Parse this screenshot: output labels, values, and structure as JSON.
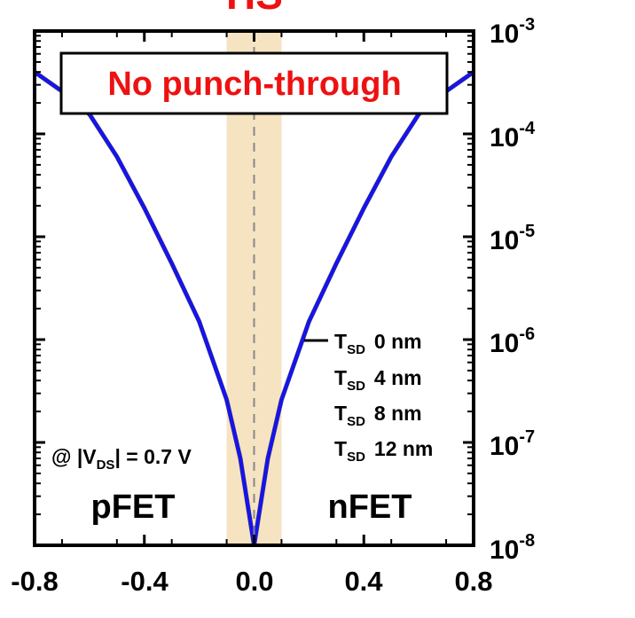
{
  "chart_data": {
    "type": "line",
    "title": "HS",
    "xlabel": "",
    "ylabel": "",
    "xlim": [
      -0.8,
      0.8
    ],
    "ylim": [
      1e-08,
      0.001
    ],
    "y_scale": "log",
    "y_axis_position": "right",
    "grid": false,
    "x_ticks": [
      "-0.8",
      "-0.4",
      "0.0",
      "0.4",
      "0.8"
    ],
    "x_tick_values": [
      -0.8,
      -0.4,
      0.0,
      0.4,
      0.8
    ],
    "y_ticks": [
      {
        "base": "10",
        "exp": "-3",
        "value": 0.001
      },
      {
        "base": "10",
        "exp": "-4",
        "value": 0.0001
      },
      {
        "base": "10",
        "exp": "-5",
        "value": 1e-05
      },
      {
        "base": "10",
        "exp": "-6",
        "value": 1e-06
      },
      {
        "base": "10",
        "exp": "-7",
        "value": 1e-07
      },
      {
        "base": "10",
        "exp": "-8",
        "value": 1e-08
      }
    ],
    "shaded_region": {
      "x": [
        -0.1,
        0.1
      ],
      "color": "#f5e3c2"
    },
    "center_line": {
      "x": 0.0,
      "style": "dashed",
      "color": "#888888"
    },
    "x": [
      -0.8,
      -0.7,
      -0.6,
      -0.5,
      -0.4,
      -0.3,
      -0.2,
      -0.1,
      -0.05,
      0.0,
      0.05,
      0.1,
      0.2,
      0.3,
      0.4,
      0.5,
      0.6,
      0.7,
      0.8
    ],
    "series": [
      {
        "name": "T_SD 0 nm",
        "color": "#5a3a3a",
        "width": 5,
        "values": [
          0.0004,
          0.00026,
          0.000155,
          6e-05,
          1.9e-05,
          5.5e-06,
          1.5e-06,
          2.6e-07,
          7e-08,
          1e-08,
          7e-08,
          2.6e-07,
          1.5e-06,
          5.5e-06,
          1.9e-05,
          6e-05,
          0.000155,
          0.00026,
          0.0004
        ]
      },
      {
        "name": "T_SD 4 nm",
        "color": "#2233cc",
        "width": 4,
        "values": [
          0.0004,
          0.00026,
          0.000155,
          6e-05,
          1.9e-05,
          5.5e-06,
          1.5e-06,
          2.6e-07,
          7e-08,
          1e-08,
          7e-08,
          2.6e-07,
          1.5e-06,
          5.5e-06,
          1.9e-05,
          6e-05,
          0.000155,
          0.00026,
          0.0004
        ]
      },
      {
        "name": "T_SD 8 nm",
        "color": "#1a2bdd",
        "width": 4,
        "values": [
          0.0004,
          0.00026,
          0.000155,
          6e-05,
          1.9e-05,
          5.5e-06,
          1.5e-06,
          2.6e-07,
          7e-08,
          1e-08,
          7e-08,
          2.6e-07,
          1.5e-06,
          5.5e-06,
          1.9e-05,
          6e-05,
          0.000155,
          0.00026,
          0.0004
        ]
      },
      {
        "name": "T_SD 12 nm",
        "color": "#1414ee",
        "width": 4,
        "values": [
          0.0004,
          0.00026,
          0.000155,
          6e-05,
          1.9e-05,
          5.5e-06,
          1.5e-06,
          2.6e-07,
          7e-08,
          1e-08,
          7e-08,
          2.6e-07,
          1.5e-06,
          5.5e-06,
          1.9e-05,
          6e-05,
          0.000155,
          0.00026,
          0.0004
        ]
      }
    ],
    "legend": {
      "placement": "lower-right",
      "entries": [
        {
          "main": "T",
          "sub": "SD",
          "value": "0 nm"
        },
        {
          "main": "T",
          "sub": "SD",
          "value": "4 nm"
        },
        {
          "main": "T",
          "sub": "SD",
          "value": "8 nm"
        },
        {
          "main": "T",
          "sub": "SD",
          "value": "12 nm"
        }
      ]
    },
    "annotations": {
      "callout": "No punch-through",
      "callout_color": "#ee1111",
      "bias_prefix": "@ |V",
      "bias_sub": "DS",
      "bias_suffix": "| = 0.7 V",
      "left_region_label": "pFET",
      "right_region_label": "nFET"
    }
  }
}
